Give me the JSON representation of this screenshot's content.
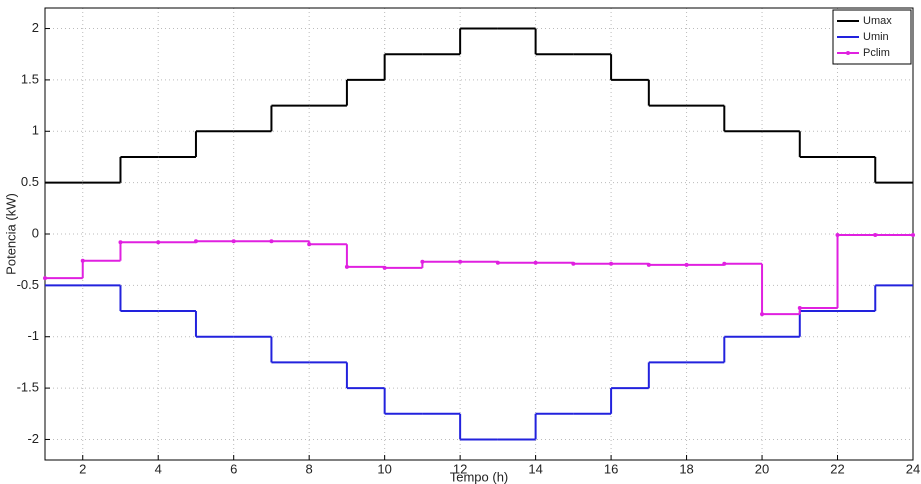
{
  "chart_data": {
    "type": "step",
    "x_label": "Tempo (h)",
    "y_label": "Potencia (kW)",
    "x": [
      1,
      2,
      3,
      4,
      5,
      6,
      7,
      8,
      9,
      10,
      11,
      12,
      13,
      14,
      15,
      16,
      17,
      18,
      19,
      20,
      21,
      22,
      23,
      24
    ],
    "series": [
      {
        "name": "Umax",
        "color": "#000000",
        "values": [
          0.5,
          0.5,
          0.75,
          0.75,
          1,
          1,
          1.25,
          1.25,
          1.5,
          1.75,
          1.75,
          2,
          2,
          1.75,
          1.75,
          1.5,
          1.25,
          1.25,
          1,
          1,
          0.75,
          0.75,
          0.5,
          0.5
        ]
      },
      {
        "name": "Umin",
        "color": "#2222dd",
        "values": [
          -0.5,
          -0.5,
          -0.75,
          -0.75,
          -1,
          -1,
          -1.25,
          -1.25,
          -1.5,
          -1.75,
          -1.75,
          -2,
          -2,
          -1.75,
          -1.75,
          -1.5,
          -1.25,
          -1.25,
          -1,
          -1,
          -0.75,
          -0.75,
          -0.5,
          -0.5
        ]
      },
      {
        "name": "Pclim",
        "color": "#e020e0",
        "markers": true,
        "values": [
          -0.43,
          -0.26,
          -0.08,
          -0.08,
          -0.07,
          -0.07,
          -0.07,
          -0.1,
          -0.32,
          -0.33,
          -0.27,
          -0.27,
          -0.28,
          -0.28,
          -0.29,
          -0.29,
          -0.3,
          -0.3,
          -0.29,
          -0.78,
          -0.72,
          -0.01,
          -0.01,
          -0.01
        ]
      }
    ],
    "xlim": [
      1,
      24
    ],
    "xticks": [
      2,
      4,
      6,
      8,
      10,
      12,
      14,
      16,
      18,
      20,
      22,
      24
    ],
    "ylim": [
      -2.2,
      2.2
    ],
    "yticks": [
      -2,
      -1.5,
      -1,
      -0.5,
      0,
      0.5,
      1,
      1.5,
      2
    ],
    "grid": true,
    "legend": "upper right"
  }
}
